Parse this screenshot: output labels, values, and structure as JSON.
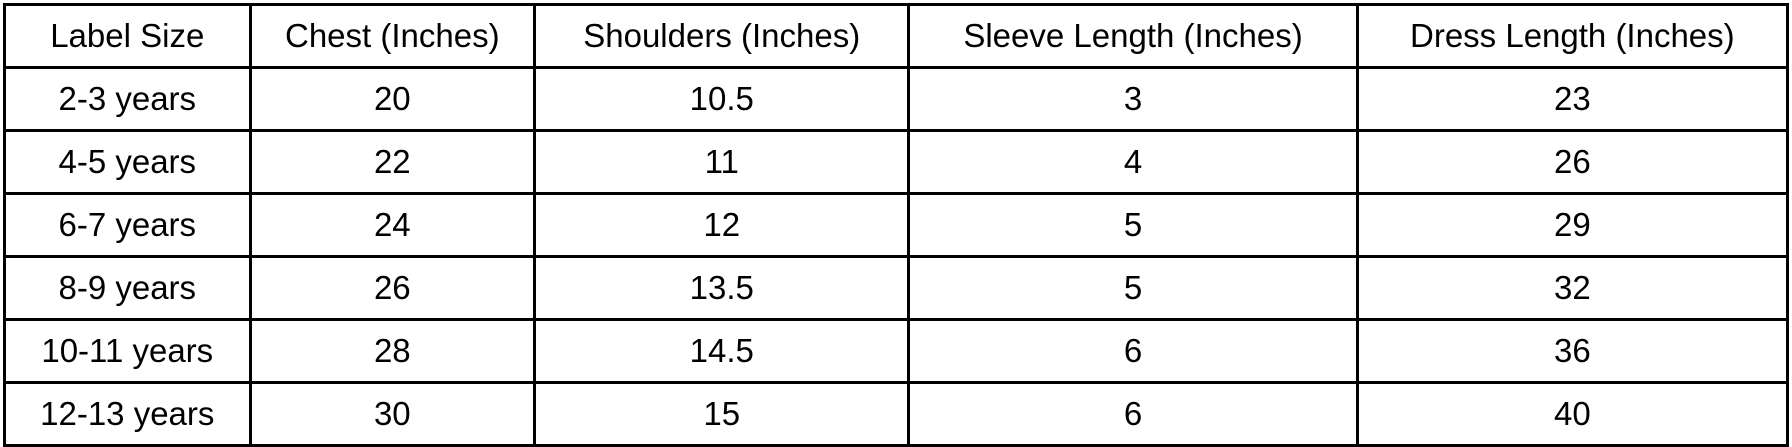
{
  "table": {
    "headers": [
      "Label Size",
      "Chest (Inches)",
      "Shoulders (Inches)",
      "Sleeve Length (Inches)",
      "Dress Length (Inches)"
    ],
    "rows": [
      [
        "2-3 years",
        "20",
        "10.5",
        "3",
        "23"
      ],
      [
        "4-5 years",
        "22",
        "11",
        "4",
        "26"
      ],
      [
        "6-7 years",
        "24",
        "12",
        "5",
        "29"
      ],
      [
        "8-9 years",
        "26",
        "13.5",
        "5",
        "32"
      ],
      [
        "10-11 years",
        "28",
        "14.5",
        "6",
        "36"
      ],
      [
        "12-13 years",
        "30",
        "15",
        "6",
        "40"
      ]
    ]
  }
}
